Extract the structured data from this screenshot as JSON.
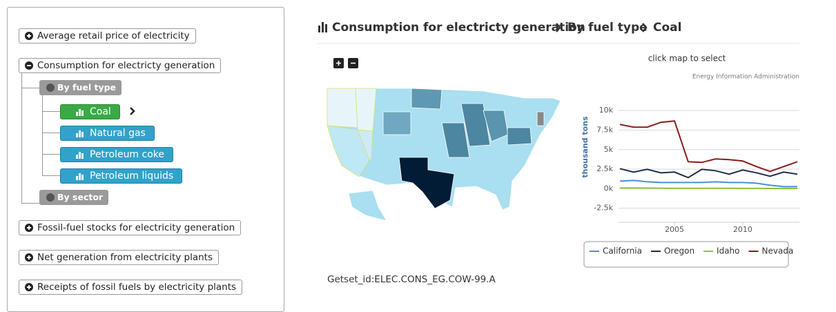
{
  "sidebar": {
    "top": [
      "Average retail price of electricity",
      "Consumption for electricty generation"
    ],
    "groups": [
      "By fuel type",
      "By sector"
    ],
    "fuel_types": [
      "Coal",
      "Natural gas",
      "Petroleum coke",
      "Petroleum liquids"
    ],
    "bottom": [
      "Fossil-fuel stocks for electricity generation",
      "Net generation from electricity plants",
      "Receipts of fossil fuels by electricity plants"
    ]
  },
  "breadcrumb": [
    "Consumption for electricty generation",
    "By fuel type",
    "Coal"
  ],
  "map": {
    "hint": "click map to select"
  },
  "getset_id": "Getset_id:ELEC.CONS_EG.COW-99.A",
  "chart_data": {
    "type": "line",
    "credit": "Energy Information Administration",
    "y_label": "thousand tons",
    "x": [
      2001,
      2002,
      2003,
      2004,
      2005,
      2006,
      2007,
      2008,
      2009,
      2010,
      2011,
      2012,
      2013,
      2014
    ],
    "xlim": [
      2001,
      2014
    ],
    "xticks": [
      2005,
      2010
    ],
    "ylim": [
      -4300,
      10900
    ],
    "yticks": [
      {
        "value": 10000,
        "label": "10k"
      },
      {
        "value": 7500,
        "label": "7.5k"
      },
      {
        "value": 5000,
        "label": "5k"
      },
      {
        "value": 2500,
        "label": "2.5k"
      },
      {
        "value": 0,
        "label": "0k"
      },
      {
        "value": -2500,
        "label": "-2.5k"
      }
    ],
    "grid": true,
    "legend": "bottom",
    "series": [
      {
        "name": "California",
        "color": "#4a8fd8",
        "values": [
          973,
          1062,
          885,
          796,
          796,
          796,
          796,
          885,
          796,
          796,
          708,
          442,
          265,
          265
        ]
      },
      {
        "name": "Oregon",
        "color": "#1c2e4a",
        "values": [
          2566,
          2124,
          2478,
          2035,
          2124,
          1416,
          2478,
          2301,
          1858,
          2389,
          2035,
          1593,
          2124,
          1858
        ]
      },
      {
        "name": "Idaho",
        "color": "#8cc43c",
        "values": [
          90,
          95,
          80,
          60,
          55,
          50,
          50,
          55,
          50,
          45,
          40,
          35,
          30,
          30
        ]
      },
      {
        "name": "Nevada",
        "color": "#8b1a1a",
        "values": [
          8230,
          7876,
          7876,
          8496,
          8673,
          3451,
          3363,
          3805,
          3717,
          3540,
          2832,
          2212,
          2832,
          3451
        ]
      }
    ]
  }
}
